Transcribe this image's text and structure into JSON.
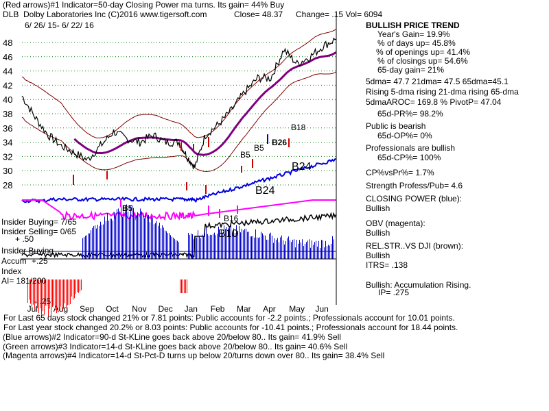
{
  "header": {
    "line1": "(Red arrows)#1 Indicator=50-day Closing Power ma turns. Its gain= 44% Buy",
    "ticker": "DLB",
    "company": "Dolby Laboratories Inc  (C)2016 www.tigersoft.com",
    "close": "Close= 48.37",
    "change": "Change= .15 Vol= 6094",
    "date_range": "6/ 26/ 15- 6/ 22/ 16"
  },
  "side_panel": [
    {
      "text": "BULLISH PRICE TREND",
      "bold": true
    },
    {
      "text": "Year's Gain= 19.9%"
    },
    {
      "text": "% of days up= 45.8%"
    },
    {
      "text": "% of openings up= 41.4%"
    },
    {
      "text": "% of closings up= 54.6%"
    },
    {
      "text": "65-day gain= 21%"
    },
    {
      "text": "5dma= 47.7 21dma= 47.5 65dma=45.1"
    },
    {
      "text": "Rising 5-dma rising 21-dma rising 65-dma"
    },
    {
      "text": "5dmaAROC= 169.8 %  PivotP= 47.04"
    },
    {
      "text": "65d-PR%= 98.2%"
    },
    {
      "text": "Public is bearish"
    },
    {
      "text": "65d-OP%= 0%"
    },
    {
      "text": "Professionals are bullish"
    },
    {
      "text": "65d-CP%= 100%"
    },
    {
      "text": "CP%vsPr%=  1.7%"
    },
    {
      "text": "Strength Profess/Pub= 4.6"
    },
    {
      "text": "CLOSING POWER (blue):"
    },
    {
      "text": "Bullish"
    },
    {
      "text": "OBV (magenta):"
    },
    {
      "text": "Bullish"
    },
    {
      "text": "REL.STR..VS DJI (brown):"
    },
    {
      "text": "Bullish"
    },
    {
      "text": "ITRS= .138"
    },
    {
      "text": "Bullish: Accumulation Rising."
    },
    {
      "text": "IP=  .275"
    }
  ],
  "left_labels": {
    "insider_buying": "Insider Buying= 7/65",
    "insider_selling": "Insider Selling= 0/65",
    "plus50": "+ .50",
    "insider_buying2": "Insider Buying",
    "accum": "Accum",
    "plus25": "+.25",
    "index": "Index",
    "ai": "AI= 181/200",
    "minus25": "- .25"
  },
  "chart_labels": {
    "b18": "B18",
    "b5a": "B5",
    "b5b": "B5",
    "b26": "B26",
    "b24a": "B24",
    "b24b": "B24",
    "b5c": "B5",
    "b10": "B10",
    "b16": "B16"
  },
  "footer": [
    "For Last 65 days stock changed  21% or  7.81 points:  Public accounts for -2.2 points.;  Professionals account for  10.01 points.",
    "For Last year stock changed  20.2% or  8.03 points:  Public accounts for -10.41 points.;  Professionals account for  18.44 points.",
    "(Blue arrows)#2 Indicator=90-d St-KLine goes back above 20/below 80.. Its gain= 41.9% Sell",
    "(Green arrows)#3 Indicator=14-d St-KLine goes back above 20/below 80.. Its gain= 40.6% Sell",
    "(Magenta arrows)#4 Indicator=14-d St-Pct-D turns up below 20/turns down over 80.. Its gain= 38.4% Sell"
  ],
  "chart_data": {
    "type": "line",
    "x_labels": [
      "Jul",
      "Aug",
      "Sep",
      "Oct",
      "Nov",
      "Dec",
      "Jan",
      "Feb",
      "Mar",
      "Apr",
      "May",
      "Jun"
    ],
    "y_ticks": [
      28,
      30,
      32,
      34,
      36,
      38,
      40,
      42,
      44,
      46,
      48
    ],
    "ylim": [
      27,
      49.5
    ],
    "price_months": [
      0,
      0.5,
      1,
      1.5,
      2,
      2.5,
      3,
      3.5,
      4,
      4.5,
      5,
      5.5,
      6,
      6.3,
      6.6,
      7,
      7.5,
      8,
      8.5,
      9,
      9.5,
      10,
      10.5,
      11,
      11.5,
      12
    ],
    "price_values": [
      40.5,
      37.5,
      35,
      33.5,
      32.5,
      31.5,
      33.5,
      35.5,
      34.5,
      34,
      35,
      34,
      34,
      32,
      30.5,
      35,
      36.5,
      38.5,
      41,
      43,
      43,
      47,
      45,
      46,
      47.5,
      48.5
    ],
    "series": [
      {
        "name": "CLOSING POWER (blue)",
        "color": "#0000dd"
      },
      {
        "name": "OBV (magenta)",
        "color": "#ff00ff"
      },
      {
        "name": "REL.STR..VS DJI (brown)",
        "color": "#800000"
      }
    ],
    "colors": {
      "price": "#000000",
      "ma65": "#800080",
      "band": "#800000",
      "grid": "#008000",
      "accum_pos": "#0000cc",
      "accum_neg": "#ff0000"
    }
  }
}
